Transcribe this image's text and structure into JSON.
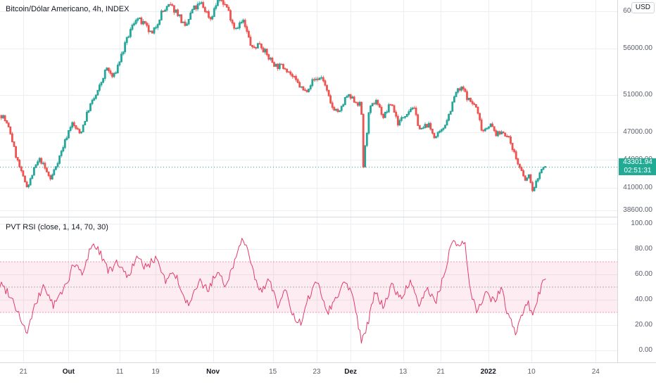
{
  "price_axis": {
    "usd_button": "USD"
  },
  "colors": {
    "background": "#ffffff",
    "grid": "#eceff2",
    "up": "#26a69a",
    "down": "#ef5350",
    "rsi_line": "#e23b69",
    "band": "#e91e63",
    "band_mid": "#787b86",
    "accent": "#22ab94",
    "axis_text": "#5a5e6b",
    "legend_text": "#131722",
    "separator": "#d6d9de"
  },
  "time_axis": {
    "labels": [
      {
        "text": "21",
        "pos": 0.038,
        "major": false
      },
      {
        "text": "Out",
        "pos": 0.111,
        "major": true
      },
      {
        "text": "11",
        "pos": 0.194,
        "major": false
      },
      {
        "text": "19",
        "pos": 0.252,
        "major": false
      },
      {
        "text": "Nov",
        "pos": 0.345,
        "major": true
      },
      {
        "text": "15",
        "pos": 0.442,
        "major": false
      },
      {
        "text": "23",
        "pos": 0.513,
        "major": false
      },
      {
        "text": "Dez",
        "pos": 0.568,
        "major": true
      },
      {
        "text": "13",
        "pos": 0.653,
        "major": false
      },
      {
        "text": "21",
        "pos": 0.714,
        "major": false
      },
      {
        "text": "2022",
        "pos": 0.791,
        "major": true
      },
      {
        "text": "10",
        "pos": 0.861,
        "major": false
      },
      {
        "text": "24",
        "pos": 0.965,
        "major": false
      }
    ]
  },
  "chart_data": [
    {
      "type": "candlestick",
      "title": "Bitcoin/Dólar Americano, 4h, INDEX",
      "symbol": "Bitcoin/Dólar Americano",
      "interval": "4h",
      "exchange": "INDEX",
      "y_range": [
        37900,
        61200
      ],
      "y_axis_labels": [
        "60000.00",
        "56000.00",
        "51000.00",
        "47000.00",
        "44000.00",
        "41000.00",
        "38600.00"
      ],
      "y_axis_values": [
        60000,
        56000,
        51000,
        47000,
        44000,
        41000,
        38600
      ],
      "current_price": 43301.94,
      "current_price_label": "43301.94",
      "countdown": "02:51:31",
      "data_end_frac": 0.884,
      "grid": true,
      "legend_position": "top-left",
      "price_path": [
        [
          0.002,
          48800
        ],
        [
          0.014,
          47100
        ],
        [
          0.023,
          44600
        ],
        [
          0.034,
          42300
        ],
        [
          0.043,
          41100
        ],
        [
          0.055,
          43300
        ],
        [
          0.063,
          44100
        ],
        [
          0.08,
          41900
        ],
        [
          0.097,
          44800
        ],
        [
          0.114,
          48000
        ],
        [
          0.128,
          46800
        ],
        [
          0.143,
          49700
        ],
        [
          0.156,
          51200
        ],
        [
          0.171,
          53900
        ],
        [
          0.182,
          52800
        ],
        [
          0.196,
          55400
        ],
        [
          0.208,
          57600
        ],
        [
          0.219,
          59300
        ],
        [
          0.234,
          58400
        ],
        [
          0.245,
          57400
        ],
        [
          0.26,
          59800
        ],
        [
          0.274,
          60600
        ],
        [
          0.287,
          59800
        ],
        [
          0.299,
          58100
        ],
        [
          0.31,
          60100
        ],
        [
          0.325,
          60800
        ],
        [
          0.34,
          59200
        ],
        [
          0.354,
          61500
        ],
        [
          0.367,
          60400
        ],
        [
          0.379,
          58200
        ],
        [
          0.393,
          58900
        ],
        [
          0.408,
          55900
        ],
        [
          0.42,
          56600
        ],
        [
          0.433,
          55100
        ],
        [
          0.447,
          54100
        ],
        [
          0.462,
          54000
        ],
        [
          0.477,
          52600
        ],
        [
          0.493,
          51300
        ],
        [
          0.507,
          52600
        ],
        [
          0.522,
          52900
        ],
        [
          0.536,
          49800
        ],
        [
          0.55,
          49100
        ],
        [
          0.561,
          50900
        ],
        [
          0.576,
          50300
        ],
        [
          0.585,
          49800
        ],
        [
          0.588,
          43100
        ],
        [
          0.592,
          45800
        ],
        [
          0.598,
          49300
        ],
        [
          0.609,
          50500
        ],
        [
          0.621,
          48600
        ],
        [
          0.634,
          50200
        ],
        [
          0.645,
          47900
        ],
        [
          0.657,
          49000
        ],
        [
          0.669,
          49800
        ],
        [
          0.681,
          47100
        ],
        [
          0.693,
          47900
        ],
        [
          0.705,
          46400
        ],
        [
          0.716,
          47100
        ],
        [
          0.728,
          49000
        ],
        [
          0.739,
          51300
        ],
        [
          0.75,
          51700
        ],
        [
          0.759,
          50500
        ],
        [
          0.771,
          49800
        ],
        [
          0.782,
          47100
        ],
        [
          0.794,
          47900
        ],
        [
          0.805,
          46700
        ],
        [
          0.816,
          47100
        ],
        [
          0.828,
          45900
        ],
        [
          0.839,
          43700
        ],
        [
          0.851,
          41800
        ],
        [
          0.859,
          42300
        ],
        [
          0.864,
          40400
        ],
        [
          0.871,
          42000
        ],
        [
          0.878,
          43000
        ],
        [
          0.884,
          43301.94
        ]
      ]
    },
    {
      "type": "line",
      "title": "PVT RSI (close, 1, 14, 70, 30)",
      "y_range": [
        0,
        100
      ],
      "y_axis_labels": [
        "100.00",
        "80.00",
        "60.00",
        "40.00",
        "20.00",
        "0.00"
      ],
      "y_axis_values": [
        100,
        80,
        60,
        40,
        20,
        0
      ],
      "band": {
        "upper": 70,
        "lower": 30,
        "middle": 50
      },
      "grid": true,
      "legend_position": "top-left",
      "values": [
        [
          0.002,
          52
        ],
        [
          0.017,
          44
        ],
        [
          0.034,
          25
        ],
        [
          0.043,
          13
        ],
        [
          0.057,
          35
        ],
        [
          0.071,
          52
        ],
        [
          0.086,
          35
        ],
        [
          0.103,
          48
        ],
        [
          0.12,
          68
        ],
        [
          0.135,
          60
        ],
        [
          0.148,
          85
        ],
        [
          0.162,
          78
        ],
        [
          0.177,
          62
        ],
        [
          0.192,
          70
        ],
        [
          0.205,
          58
        ],
        [
          0.222,
          72
        ],
        [
          0.239,
          65
        ],
        [
          0.253,
          75
        ],
        [
          0.268,
          55
        ],
        [
          0.283,
          62
        ],
        [
          0.296,
          42
        ],
        [
          0.308,
          35
        ],
        [
          0.322,
          55
        ],
        [
          0.336,
          48
        ],
        [
          0.351,
          60
        ],
        [
          0.365,
          52
        ],
        [
          0.38,
          70
        ],
        [
          0.39,
          87
        ],
        [
          0.401,
          84
        ],
        [
          0.413,
          55
        ],
        [
          0.424,
          45
        ],
        [
          0.436,
          58
        ],
        [
          0.45,
          35
        ],
        [
          0.462,
          48
        ],
        [
          0.473,
          28
        ],
        [
          0.488,
          20
        ],
        [
          0.502,
          45
        ],
        [
          0.515,
          55
        ],
        [
          0.53,
          30
        ],
        [
          0.545,
          42
        ],
        [
          0.559,
          55
        ],
        [
          0.572,
          45
        ],
        [
          0.585,
          8
        ],
        [
          0.595,
          20
        ],
        [
          0.607,
          45
        ],
        [
          0.621,
          35
        ],
        [
          0.636,
          52
        ],
        [
          0.65,
          40
        ],
        [
          0.664,
          55
        ],
        [
          0.678,
          35
        ],
        [
          0.693,
          48
        ],
        [
          0.707,
          40
        ],
        [
          0.721,
          62
        ],
        [
          0.733,
          88
        ],
        [
          0.743,
          80
        ],
        [
          0.753,
          85
        ],
        [
          0.762,
          45
        ],
        [
          0.773,
          30
        ],
        [
          0.787,
          48
        ],
        [
          0.8,
          38
        ],
        [
          0.812,
          50
        ],
        [
          0.823,
          28
        ],
        [
          0.836,
          12
        ],
        [
          0.846,
          30
        ],
        [
          0.855,
          38
        ],
        [
          0.863,
          25
        ],
        [
          0.871,
          42
        ],
        [
          0.878,
          50
        ],
        [
          0.884,
          60
        ]
      ]
    }
  ]
}
